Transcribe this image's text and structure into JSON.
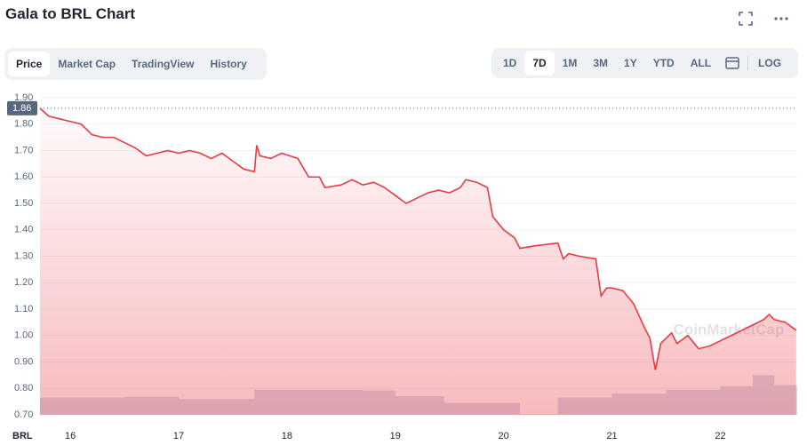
{
  "header": {
    "title": "Gala to BRL Chart"
  },
  "tabs": [
    "Price",
    "Market Cap",
    "TradingView",
    "History"
  ],
  "ranges": [
    "1D",
    "7D",
    "1M",
    "3M",
    "1Y",
    "YTD",
    "ALL"
  ],
  "log_label": "LOG",
  "chart_data": {
    "type": "line",
    "color": "#ea3943",
    "x": [
      15.72,
      15.8,
      15.9,
      16.0,
      16.1,
      16.15,
      16.2,
      16.3,
      16.4,
      16.5,
      16.6,
      16.7,
      16.8,
      16.9,
      17.0,
      17.1,
      17.2,
      17.3,
      17.4,
      17.5,
      17.6,
      17.7,
      17.72,
      17.75,
      17.85,
      17.95,
      18.1,
      18.2,
      18.3,
      18.35,
      18.5,
      18.6,
      18.7,
      18.8,
      18.9,
      19.0,
      19.1,
      19.2,
      19.3,
      19.4,
      19.5,
      19.6,
      19.65,
      19.75,
      19.85,
      19.9,
      20.0,
      20.1,
      20.15,
      20.3,
      20.5,
      20.55,
      20.6,
      20.7,
      20.85,
      20.9,
      20.95,
      21.0,
      21.1,
      21.2,
      21.3,
      21.35,
      21.4,
      21.45,
      21.5,
      21.55,
      21.6,
      21.7,
      21.8,
      21.9,
      22.0,
      22.1,
      22.2,
      22.3,
      22.4,
      22.45,
      22.5,
      22.6,
      22.7
    ],
    "values": [
      1.86,
      1.83,
      1.82,
      1.81,
      1.8,
      1.78,
      1.76,
      1.75,
      1.75,
      1.73,
      1.71,
      1.68,
      1.69,
      1.7,
      1.69,
      1.7,
      1.69,
      1.67,
      1.69,
      1.66,
      1.63,
      1.62,
      1.72,
      1.68,
      1.67,
      1.69,
      1.67,
      1.6,
      1.6,
      1.56,
      1.57,
      1.59,
      1.57,
      1.58,
      1.56,
      1.53,
      1.5,
      1.52,
      1.54,
      1.55,
      1.54,
      1.56,
      1.59,
      1.58,
      1.56,
      1.45,
      1.4,
      1.37,
      1.33,
      1.34,
      1.35,
      1.29,
      1.31,
      1.3,
      1.29,
      1.15,
      1.18,
      1.18,
      1.17,
      1.12,
      1.03,
      0.99,
      0.87,
      0.97,
      0.99,
      1.01,
      0.97,
      1.0,
      0.95,
      0.96,
      0.98,
      1.0,
      1.02,
      1.04,
      1.06,
      1.08,
      1.06,
      1.05,
      1.02
    ],
    "volume": {
      "color": "#cfd6e4",
      "x": [
        15.72,
        16.5,
        17.0,
        17.7,
        18.7,
        19.0,
        19.45,
        20.15,
        20.5,
        21.0,
        21.5,
        22.0,
        22.3,
        22.5,
        22.71
      ],
      "values": [
        0.765,
        0.768,
        0.76,
        0.795,
        0.792,
        0.77,
        0.745,
        0.703,
        0.765,
        0.78,
        0.795,
        0.808,
        0.85,
        0.812,
        0.79
      ]
    },
    "xlim": [
      15.72,
      22.71
    ],
    "xticks": [
      16,
      17,
      18,
      19,
      20,
      21,
      22
    ],
    "ylim": [
      0.7,
      1.9
    ],
    "yticks": [
      {
        "value": 0.7,
        "label": "0.70"
      },
      {
        "value": 0.8,
        "label": "0.80"
      },
      {
        "value": 0.9,
        "label": "0.90"
      },
      {
        "value": 1.0,
        "label": "1.00"
      },
      {
        "value": 1.1,
        "label": "1.10"
      },
      {
        "value": 1.2,
        "label": "1.20"
      },
      {
        "value": 1.3,
        "label": "1.30"
      },
      {
        "value": 1.4,
        "label": "1.40"
      },
      {
        "value": 1.5,
        "label": "1.50"
      },
      {
        "value": 1.6,
        "label": "1.60"
      },
      {
        "value": 1.7,
        "label": "1.70"
      },
      {
        "value": 1.8,
        "label": "1.80"
      },
      {
        "value": 1.9,
        "label": "1.90"
      }
    ],
    "grid": true,
    "current_price": {
      "value": 1.86,
      "label": "1.86"
    },
    "currency": "BRL",
    "watermark": "CoinMarketCap"
  }
}
